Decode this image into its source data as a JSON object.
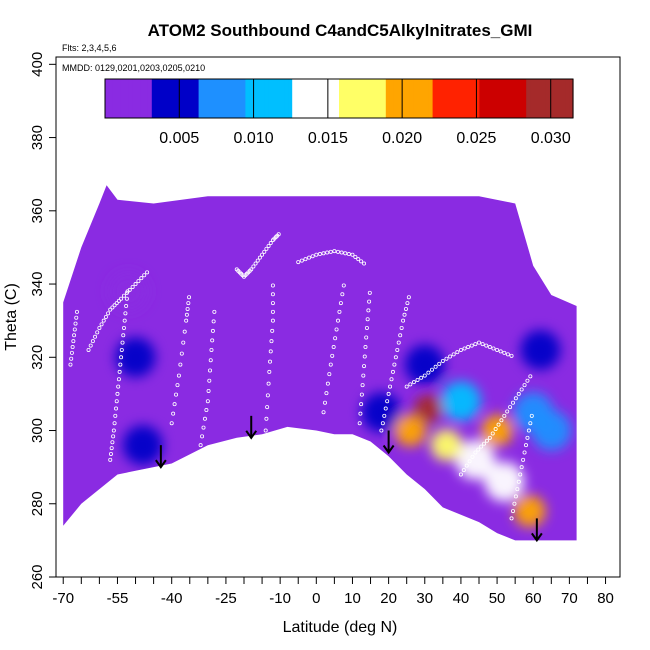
{
  "chart_data": {
    "type": "heatmap",
    "title": "ATOM2 Southbound C4andC5Alkylnitrates_GMI",
    "flights_note": "Flts: 2,3,4,5,6",
    "dates_note": "MMDD: 0129,0201,0203,0205,0210",
    "xlabel": "Latitude (deg N)",
    "ylabel": "Theta (C)",
    "xlim": [
      -72,
      84
    ],
    "ylim": [
      260,
      402
    ],
    "x_ticks": [
      -70,
      -55,
      -40,
      -25,
      -10,
      0,
      10,
      20,
      30,
      40,
      50,
      60,
      70,
      80
    ],
    "x_minor_ticks": [
      -65,
      -60,
      -50,
      -45,
      -35,
      -30,
      -20,
      -15,
      -5,
      5,
      15,
      25,
      35,
      45,
      55,
      65,
      75
    ],
    "y_ticks": [
      260,
      280,
      300,
      320,
      340,
      360,
      380,
      400
    ],
    "colorbar": {
      "range": [
        0.0,
        0.0315
      ],
      "ticks": [
        0.005,
        0.01,
        0.015,
        0.02,
        0.025,
        0.03
      ],
      "tick_labels": [
        "0.005",
        "0.010",
        "0.015",
        "0.020",
        "0.025",
        "0.030"
      ],
      "colors": [
        "#8a2be2",
        "#0000c8",
        "#1e90ff",
        "#00bfff",
        "#ffffff",
        "#ffff66",
        "#ffa500",
        "#ff2200",
        "#cc0000",
        "#a52a2a"
      ]
    },
    "ground_profile": [
      [
        -70,
        274
      ],
      [
        -65,
        280
      ],
      [
        -55,
        288
      ],
      [
        -50,
        289
      ],
      [
        -45,
        290
      ],
      [
        -40,
        291
      ],
      [
        -30,
        296
      ],
      [
        -22,
        298
      ],
      [
        -15,
        299
      ],
      [
        -8,
        301
      ],
      [
        0,
        300
      ],
      [
        5,
        299
      ],
      [
        10,
        299
      ],
      [
        15,
        297
      ],
      [
        20,
        293
      ],
      [
        25,
        288
      ],
      [
        30,
        284
      ],
      [
        35,
        279
      ],
      [
        40,
        277
      ],
      [
        45,
        275
      ],
      [
        50,
        272
      ],
      [
        55,
        270
      ],
      [
        60,
        270
      ],
      [
        65,
        270
      ],
      [
        72,
        270
      ]
    ],
    "top_profile": [
      [
        -70,
        335
      ],
      [
        -65,
        350
      ],
      [
        -60,
        362
      ],
      [
        -58,
        367
      ],
      [
        -55,
        363
      ],
      [
        -45,
        362
      ],
      [
        -30,
        364
      ],
      [
        -15,
        364
      ],
      [
        0,
        364
      ],
      [
        15,
        364
      ],
      [
        30,
        364
      ],
      [
        45,
        364
      ],
      [
        55,
        362
      ],
      [
        60,
        345
      ],
      [
        65,
        337
      ],
      [
        72,
        334
      ]
    ],
    "hotspots": [
      {
        "lat": 31,
        "theta": 306,
        "value": 0.031
      },
      {
        "lat": 50,
        "theta": 300,
        "value": 0.021
      },
      {
        "lat": 59,
        "theta": 278,
        "value": 0.022
      },
      {
        "lat": 26,
        "theta": 300,
        "value": 0.02
      },
      {
        "lat": 36,
        "theta": 296,
        "value": 0.016
      },
      {
        "lat": 44,
        "theta": 292,
        "value": 0.014
      },
      {
        "lat": 52,
        "theta": 286,
        "value": 0.013
      },
      {
        "lat": 40,
        "theta": 308,
        "value": 0.012
      },
      {
        "lat": 60,
        "theta": 305,
        "value": 0.009
      },
      {
        "lat": 30,
        "theta": 318,
        "value": 0.006
      },
      {
        "lat": 65,
        "theta": 300,
        "value": 0.008
      },
      {
        "lat": -48,
        "theta": 296,
        "value": 0.005
      },
      {
        "lat": -50,
        "theta": 320,
        "value": 0.004
      },
      {
        "lat": -52,
        "theta": 338,
        "value": 0.003
      },
      {
        "lat": 18,
        "theta": 305,
        "value": 0.004
      },
      {
        "lat": 62,
        "theta": 322,
        "value": 0.004
      }
    ],
    "arrows": [
      {
        "lat": -43,
        "theta": 290
      },
      {
        "lat": -18,
        "theta": 298
      },
      {
        "lat": 20,
        "theta": 294
      },
      {
        "lat": 61,
        "theta": 270
      }
    ],
    "flight_tracks": [
      [
        [
          -57,
          292
        ],
        [
          -56,
          300
        ],
        [
          -55,
          310
        ],
        [
          -54,
          320
        ],
        [
          -53,
          330
        ],
        [
          -52,
          340
        ]
      ],
      [
        [
          -63,
          322
        ],
        [
          -60,
          328
        ],
        [
          -57,
          333
        ],
        [
          -54,
          336
        ],
        [
          -50,
          340
        ],
        [
          -46,
          344
        ]
      ],
      [
        [
          -40,
          302
        ],
        [
          -38,
          315
        ],
        [
          -36,
          330
        ],
        [
          -35,
          338
        ]
      ],
      [
        [
          -32,
          296
        ],
        [
          -30,
          308
        ],
        [
          -29,
          322
        ],
        [
          -28,
          335
        ]
      ],
      [
        [
          -22,
          344
        ],
        [
          -20,
          342
        ],
        [
          -18,
          344
        ],
        [
          -15,
          348
        ],
        [
          -12,
          352
        ],
        [
          -10,
          354
        ]
      ],
      [
        [
          -14,
          300
        ],
        [
          -13,
          316
        ],
        [
          -12,
          330
        ],
        [
          -12,
          342
        ]
      ],
      [
        [
          -5,
          346
        ],
        [
          0,
          348
        ],
        [
          5,
          349
        ],
        [
          10,
          348
        ],
        [
          14,
          345
        ]
      ],
      [
        [
          2,
          305
        ],
        [
          4,
          318
        ],
        [
          6,
          330
        ],
        [
          8,
          342
        ]
      ],
      [
        [
          12,
          302
        ],
        [
          13,
          315
        ],
        [
          14,
          328
        ],
        [
          15,
          340
        ]
      ],
      [
        [
          18,
          300
        ],
        [
          20,
          310
        ],
        [
          22,
          320
        ],
        [
          24,
          330
        ],
        [
          26,
          338
        ]
      ],
      [
        [
          25,
          312
        ],
        [
          30,
          315
        ],
        [
          35,
          319
        ],
        [
          40,
          322
        ],
        [
          45,
          324
        ],
        [
          50,
          322
        ],
        [
          55,
          320
        ]
      ],
      [
        [
          40,
          288
        ],
        [
          44,
          294
        ],
        [
          48,
          298
        ],
        [
          52,
          304
        ],
        [
          56,
          310
        ],
        [
          60,
          316
        ]
      ],
      [
        [
          54,
          276
        ],
        [
          56,
          286
        ],
        [
          58,
          296
        ],
        [
          60,
          306
        ]
      ],
      [
        [
          -68,
          318
        ],
        [
          -67,
          326
        ],
        [
          -66,
          334
        ]
      ]
    ]
  }
}
